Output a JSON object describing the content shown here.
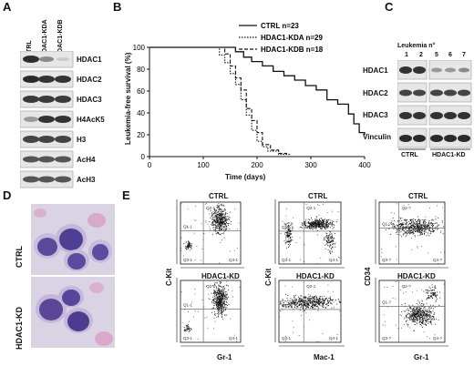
{
  "panels": {
    "A": {
      "letter": "A",
      "lanes": [
        "CTRL",
        "HDAC1-KDA",
        "HDAC1-KDB"
      ],
      "bands": [
        "HDAC1",
        "HDAC2",
        "HDAC3",
        "H4AcK5",
        "H3",
        "AcH4",
        "AcH3"
      ]
    },
    "B": {
      "letter": "B",
      "ylabel": "Leukemia-free survival (%)",
      "xlabel": "Time (days)",
      "legend": [
        "CTRL n=23",
        "HDAC1-KDA n=29",
        "HDAC1-KDB n=18"
      ]
    },
    "C": {
      "letter": "C",
      "header": "Leukemia n°",
      "lane_numbers": [
        "1",
        "2",
        "5",
        "6",
        "7"
      ],
      "bands": [
        "HDAC1",
        "HDAC2",
        "HDAC3",
        "Vinculin"
      ],
      "groups": [
        "CTRL",
        "HDAC1-KD"
      ]
    },
    "D": {
      "letter": "D",
      "rows": [
        "CTRL",
        "HDAC1-KD"
      ]
    },
    "E": {
      "letter": "E",
      "plots": [
        {
          "title": "CTRL",
          "ylabel": "C-Kit",
          "xlabel": "",
          "quads": [
            "Q1-1",
            "Q2-1",
            "Q3-1",
            "Q4-1"
          ]
        },
        {
          "title": "CTRL",
          "ylabel": "C-Kit",
          "xlabel": "",
          "quads": [
            "Q1-1",
            "Q2-1",
            "Q3-1",
            "Q4-1"
          ]
        },
        {
          "title": "CTRL",
          "ylabel": "CD34",
          "xlabel": "",
          "quads": [
            "Q1-?",
            "Q2-?",
            "Q3-?",
            "Q4-?"
          ]
        },
        {
          "title": "HDAC1-KD",
          "ylabel": "",
          "xlabel": "Gr-1",
          "quads": [
            "Q1-1",
            "Q2-1",
            "Q3-1",
            "Q4-1"
          ]
        },
        {
          "title": "HDAC1-KD",
          "ylabel": "",
          "xlabel": "Mac-1",
          "quads": [
            "Q1-1",
            "Q2-1",
            "Q3-1",
            "Q4-1"
          ]
        },
        {
          "title": "HDAC1-KD",
          "ylabel": "",
          "xlabel": "Gr-1",
          "quads": [
            "Q1-?",
            "Q2-?",
            "Q3-?",
            "Q4-?"
          ]
        }
      ]
    }
  },
  "chart_data": {
    "type": "line",
    "title": "",
    "xlabel": "Time (days)",
    "ylabel": "Leukemia-free survival (%)",
    "xlim": [
      0,
      400
    ],
    "ylim": [
      0,
      100
    ],
    "xticks": [
      0,
      100,
      200,
      300,
      400
    ],
    "yticks": [
      0,
      20,
      40,
      60,
      80,
      100
    ],
    "legend_position": "top-right",
    "series": [
      {
        "name": "CTRL n=23",
        "style": "solid",
        "x": [
          0,
          150,
          160,
          175,
          190,
          210,
          230,
          250,
          270,
          290,
          310,
          330,
          350,
          370,
          380,
          390,
          400
        ],
        "y": [
          100,
          100,
          96,
          91,
          87,
          83,
          78,
          74,
          70,
          65,
          61,
          52,
          48,
          39,
          30,
          22,
          20
        ]
      },
      {
        "name": "HDAC1-KDA n=29",
        "style": "dotted",
        "x": [
          0,
          120,
          130,
          140,
          150,
          160,
          170,
          180,
          190,
          200,
          210,
          220,
          240,
          260
        ],
        "y": [
          100,
          100,
          93,
          86,
          76,
          66,
          52,
          38,
          24,
          14,
          9,
          5,
          2,
          0
        ]
      },
      {
        "name": "HDAC1-KDB n=18",
        "style": "dashed",
        "x": [
          0,
          130,
          140,
          150,
          160,
          170,
          180,
          190,
          200,
          210,
          225,
          240,
          255
        ],
        "y": [
          100,
          100,
          94,
          83,
          72,
          61,
          44,
          33,
          22,
          11,
          6,
          3,
          0
        ]
      }
    ]
  }
}
